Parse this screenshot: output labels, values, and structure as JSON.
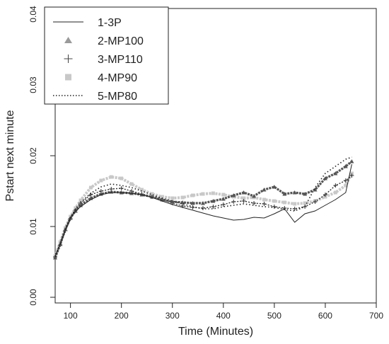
{
  "chart_data": {
    "type": "line",
    "xlabel": "Time (Minutes)",
    "ylabel": "Pstart next minute",
    "xlim": [
      70,
      700
    ],
    "ylim": [
      0.0,
      0.04
    ],
    "x_ticks": [
      100,
      200,
      300,
      400,
      500,
      600,
      700
    ],
    "x_tick_labels": [
      "100",
      "200",
      "300",
      "400",
      "500",
      "600",
      "700"
    ],
    "y_ticks": [
      0.0,
      0.01,
      0.02,
      0.03,
      0.04
    ],
    "y_tick_labels": [
      "0.00",
      "0.01",
      "0.02",
      "0.03",
      "0.04"
    ],
    "legend_position": "top-left",
    "colors": {
      "1-3P": "#222222",
      "2-MP100": "#555555",
      "3-MP110": "#333333",
      "4-MP90": "#c8c8c8",
      "5-MP80": "#222222"
    },
    "series": [
      {
        "name": "1-3P",
        "style": "solid",
        "x": [
          70,
          80,
          90,
          100,
          110,
          120,
          140,
          160,
          180,
          200,
          220,
          240,
          260,
          280,
          300,
          320,
          340,
          360,
          380,
          400,
          420,
          440,
          460,
          480,
          500,
          520,
          540,
          560,
          580,
          600,
          620,
          640,
          652
        ],
        "y": [
          0.0058,
          0.0075,
          0.0095,
          0.0112,
          0.0122,
          0.0128,
          0.0138,
          0.0145,
          0.0148,
          0.0148,
          0.0147,
          0.0145,
          0.0141,
          0.0136,
          0.0131,
          0.0127,
          0.0123,
          0.0119,
          0.0115,
          0.0112,
          0.0109,
          0.011,
          0.0113,
          0.0112,
          0.0118,
          0.0125,
          0.0106,
          0.0118,
          0.0122,
          0.013,
          0.0138,
          0.0148,
          0.0188
        ]
      },
      {
        "name": "2-MP100",
        "style": "triangle",
        "x": [
          70,
          80,
          90,
          100,
          110,
          120,
          140,
          160,
          180,
          200,
          220,
          240,
          260,
          280,
          300,
          320,
          340,
          360,
          380,
          400,
          420,
          440,
          460,
          480,
          500,
          520,
          540,
          560,
          580,
          600,
          620,
          640,
          652
        ],
        "y": [
          0.0056,
          0.0075,
          0.0096,
          0.0112,
          0.0122,
          0.013,
          0.014,
          0.0146,
          0.0149,
          0.0148,
          0.0147,
          0.0145,
          0.0142,
          0.0138,
          0.0135,
          0.0134,
          0.0133,
          0.0133,
          0.0136,
          0.0139,
          0.0144,
          0.0148,
          0.0143,
          0.0152,
          0.0156,
          0.0146,
          0.0148,
          0.0146,
          0.0152,
          0.0168,
          0.0175,
          0.0185,
          0.0192
        ]
      },
      {
        "name": "3-MP110",
        "style": "plus",
        "x": [
          70,
          80,
          90,
          100,
          110,
          120,
          140,
          160,
          180,
          200,
          220,
          240,
          260,
          280,
          300,
          320,
          340,
          360,
          380,
          400,
          420,
          440,
          460,
          480,
          500,
          520,
          540,
          560,
          580,
          600,
          620,
          640,
          652
        ],
        "y": [
          0.0057,
          0.0074,
          0.0094,
          0.0111,
          0.0123,
          0.0133,
          0.0145,
          0.015,
          0.0153,
          0.0154,
          0.015,
          0.0146,
          0.0142,
          0.0138,
          0.0133,
          0.0129,
          0.0127,
          0.0126,
          0.0128,
          0.0131,
          0.0135,
          0.0136,
          0.0133,
          0.0132,
          0.0128,
          0.0126,
          0.0125,
          0.0128,
          0.0135,
          0.0145,
          0.0158,
          0.0165,
          0.0172
        ]
      },
      {
        "name": "4-MP90",
        "style": "square",
        "x": [
          70,
          80,
          90,
          100,
          110,
          120,
          140,
          160,
          180,
          200,
          220,
          240,
          260,
          280,
          300,
          320,
          340,
          360,
          380,
          400,
          420,
          440,
          460,
          480,
          500,
          520,
          540,
          560,
          580,
          600,
          620,
          640,
          652
        ],
        "y": [
          0.0058,
          0.0078,
          0.0098,
          0.0114,
          0.0126,
          0.0137,
          0.0155,
          0.0165,
          0.017,
          0.0168,
          0.016,
          0.0152,
          0.0146,
          0.0142,
          0.014,
          0.0141,
          0.0144,
          0.0146,
          0.0147,
          0.0145,
          0.0142,
          0.014,
          0.0141,
          0.0138,
          0.0136,
          0.0134,
          0.0132,
          0.0133,
          0.0136,
          0.0142,
          0.0148,
          0.0158,
          0.0175
        ]
      },
      {
        "name": "5-MP80",
        "style": "dotted",
        "x": [
          70,
          80,
          90,
          100,
          110,
          120,
          140,
          160,
          180,
          200,
          220,
          240,
          260,
          280,
          300,
          320,
          340,
          360,
          380,
          400,
          420,
          440,
          460,
          480,
          500,
          520,
          540,
          560,
          580,
          600,
          620,
          640,
          652
        ],
        "y": [
          0.0057,
          0.0076,
          0.0096,
          0.0113,
          0.0125,
          0.0134,
          0.0147,
          0.0156,
          0.016,
          0.0158,
          0.0155,
          0.015,
          0.0145,
          0.014,
          0.0136,
          0.0132,
          0.0128,
          0.0125,
          0.0125,
          0.0128,
          0.013,
          0.0132,
          0.013,
          0.0128,
          0.0127,
          0.0124,
          0.0122,
          0.0128,
          0.0155,
          0.0175,
          0.0185,
          0.0195,
          0.0198
        ]
      }
    ]
  }
}
